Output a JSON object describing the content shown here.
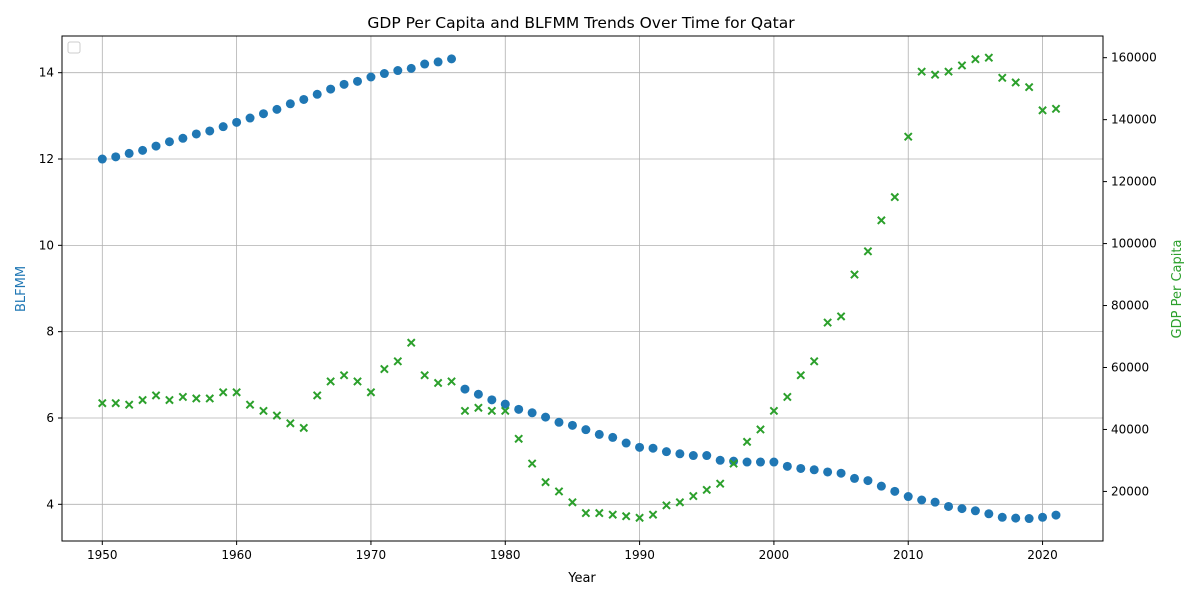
{
  "chart_data": {
    "type": "scatter",
    "title": "GDP Per Capita and BLFMM Trends Over Time for Qatar",
    "xlabel": "Year",
    "ylabel_left": "BLFMM",
    "ylabel_right": "GDP Per Capita",
    "xlim": [
      1947,
      2024.5
    ],
    "ylim_left": [
      3.15,
      14.85
    ],
    "ylim_right": [
      4000,
      167000
    ],
    "x_ticks": [
      1950,
      1960,
      1970,
      1980,
      1990,
      2000,
      2010,
      2020
    ],
    "y_left_ticks": [
      4,
      6,
      8,
      10,
      12,
      14
    ],
    "y_right_ticks": [
      20000,
      40000,
      60000,
      80000,
      100000,
      120000,
      140000,
      160000
    ],
    "grid": true,
    "legend": "top-left (empty)",
    "colors": {
      "left": "#1f77b4",
      "right": "#2ca02c"
    },
    "series": [
      {
        "name": "BLFMM",
        "axis": "left",
        "marker": "circle",
        "x": [
          1950,
          1951,
          1952,
          1953,
          1954,
          1955,
          1956,
          1957,
          1958,
          1959,
          1960,
          1961,
          1962,
          1963,
          1964,
          1965,
          1966,
          1967,
          1968,
          1969,
          1970,
          1971,
          1972,
          1973,
          1974,
          1975,
          1976,
          1977,
          1978,
          1979,
          1980,
          1981,
          1982,
          1983,
          1984,
          1985,
          1986,
          1987,
          1988,
          1989,
          1990,
          1991,
          1992,
          1993,
          1994,
          1995,
          1996,
          1997,
          1998,
          1999,
          2000,
          2001,
          2002,
          2003,
          2004,
          2005,
          2006,
          2007,
          2008,
          2009,
          2010,
          2011,
          2012,
          2013,
          2014,
          2015,
          2016,
          2017,
          2018,
          2019,
          2020,
          2021
        ],
        "values": [
          12.0,
          12.05,
          12.13,
          12.2,
          12.3,
          12.4,
          12.48,
          12.58,
          12.65,
          12.75,
          12.85,
          12.95,
          13.05,
          13.15,
          13.28,
          13.38,
          13.5,
          13.62,
          13.73,
          13.8,
          13.9,
          13.98,
          14.05,
          14.1,
          14.2,
          14.25,
          14.32,
          6.67,
          6.55,
          6.42,
          6.32,
          6.2,
          6.12,
          6.02,
          5.9,
          5.83,
          5.73,
          5.62,
          5.55,
          5.42,
          5.32,
          5.3,
          5.22,
          5.17,
          5.13,
          5.13,
          5.02,
          5.0,
          4.98,
          4.98,
          4.98,
          4.88,
          4.83,
          4.8,
          4.75,
          4.72,
          4.6,
          4.55,
          4.42,
          4.3,
          4.18,
          4.1,
          4.05,
          3.95,
          3.9,
          3.85,
          3.78,
          3.7,
          3.68,
          3.67,
          3.7,
          3.75
        ]
      },
      {
        "name": "GDP Per Capita",
        "axis": "right",
        "marker": "x",
        "x": [
          1950,
          1951,
          1952,
          1953,
          1954,
          1955,
          1956,
          1957,
          1958,
          1959,
          1960,
          1961,
          1962,
          1963,
          1964,
          1965,
          1966,
          1967,
          1968,
          1969,
          1970,
          1971,
          1972,
          1973,
          1974,
          1975,
          1976,
          1977,
          1978,
          1979,
          1980,
          1981,
          1982,
          1983,
          1984,
          1985,
          1986,
          1987,
          1988,
          1989,
          1990,
          1991,
          1992,
          1993,
          1994,
          1995,
          1996,
          1997,
          1998,
          1999,
          2000,
          2001,
          2002,
          2003,
          2004,
          2005,
          2006,
          2007,
          2008,
          2009,
          2010,
          2011,
          2012,
          2013,
          2014,
          2015,
          2016,
          2017,
          2018,
          2019,
          2020,
          2021
        ],
        "values": [
          48500,
          48500,
          48000,
          49500,
          51000,
          49500,
          50500,
          50000,
          50000,
          52000,
          52000,
          48000,
          46000,
          44500,
          42000,
          40500,
          51000,
          55500,
          57500,
          55500,
          52000,
          59500,
          62000,
          68000,
          57500,
          55000,
          55500,
          46000,
          47000,
          46000,
          46000,
          37000,
          29000,
          23000,
          20000,
          16500,
          13000,
          13000,
          12500,
          12000,
          11500,
          12500,
          15500,
          16500,
          18500,
          20500,
          22500,
          29000,
          36000,
          40000,
          46000,
          50500,
          57500,
          62000,
          74500,
          76500,
          90000,
          97500,
          107500,
          115000,
          134500,
          155500,
          154500,
          155500,
          157500,
          159500,
          160000,
          153500,
          152000,
          150500,
          143000,
          143500
        ]
      }
    ]
  }
}
